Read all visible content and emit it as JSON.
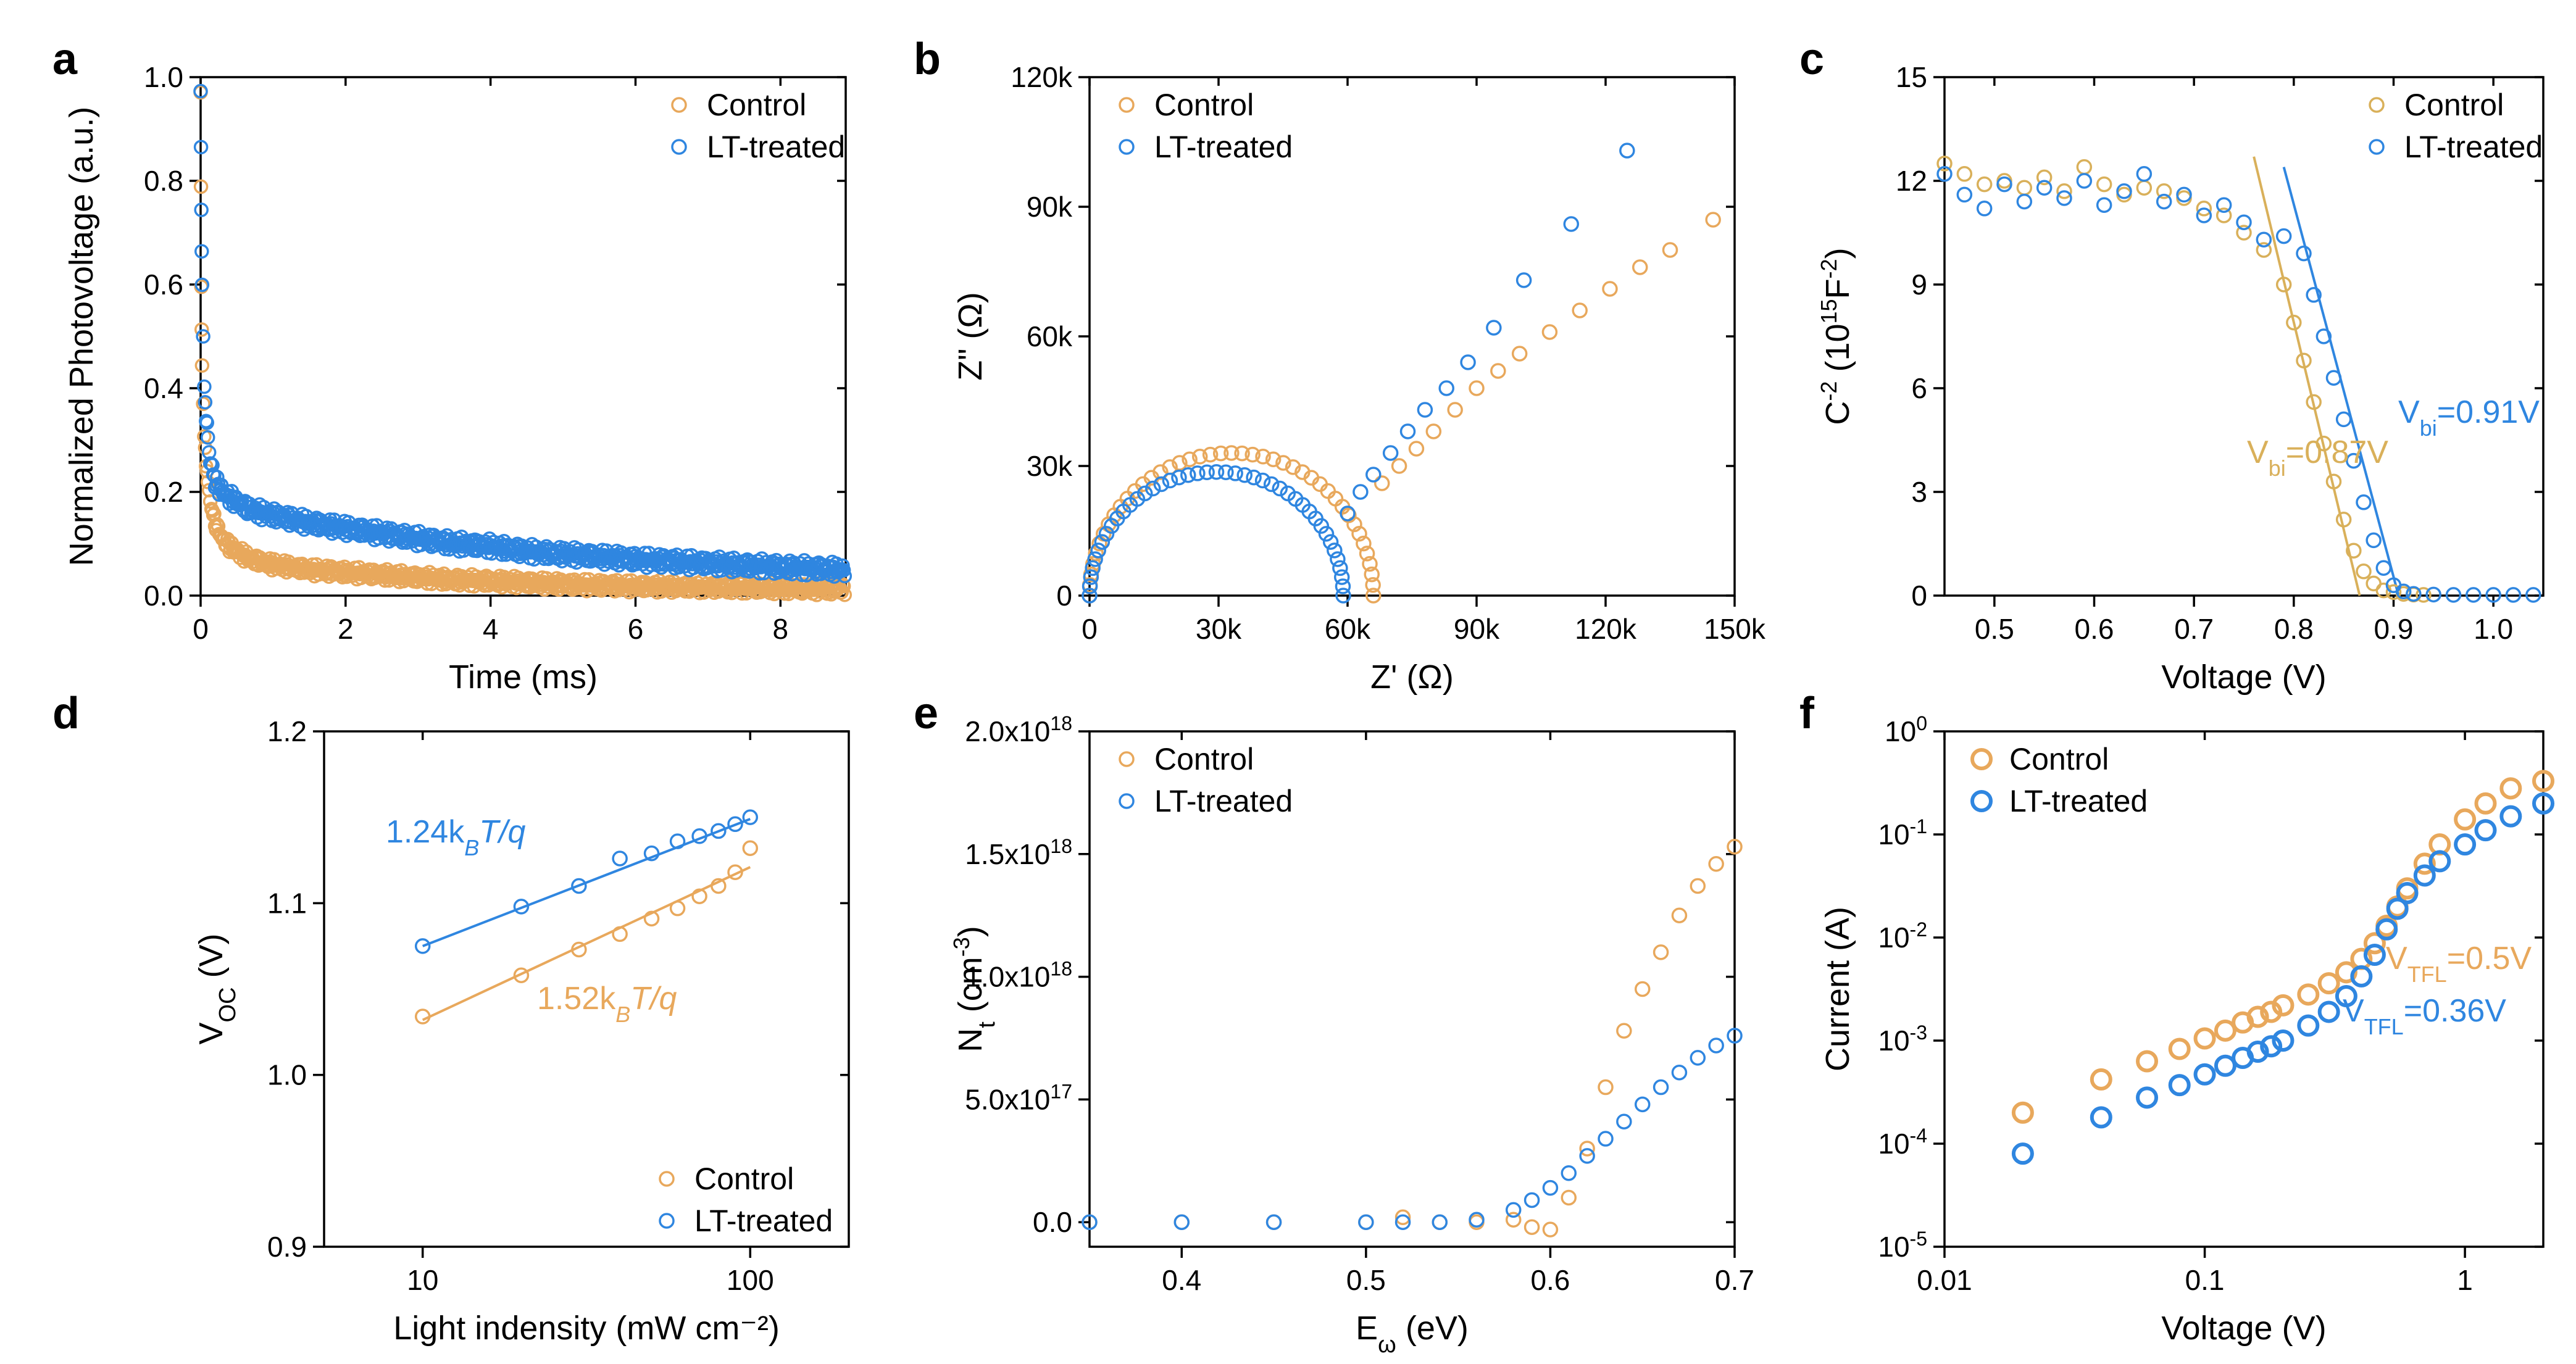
{
  "colors": {
    "control": "#E8A85C",
    "lt_treated": "#2F86E0",
    "control_c": "#D9B05A",
    "axis": "#000000"
  },
  "chart_data": [
    {
      "panel": "a",
      "type": "scatter",
      "xlabel": "Time (ms)",
      "ylabel": "Normalized Photovoltage (a.u.)",
      "xlim": [
        0,
        8.9
      ],
      "ylim": [
        0,
        1.0
      ],
      "xticks": [
        0,
        2,
        4,
        6,
        8
      ],
      "xtick_labels": [
        "0",
        "2",
        "4",
        "6",
        "8"
      ],
      "yticks": [
        0,
        0.2,
        0.4,
        0.6,
        0.8,
        1.0
      ],
      "ytick_labels": [
        "0.0",
        "0.2",
        "0.4",
        "0.6",
        "0.8",
        "1.0"
      ],
      "legend": [
        "Control",
        "LT-treated"
      ],
      "legend_position": "top-right",
      "series": [
        {
          "name": "Control",
          "x": [
            0,
            0.01,
            0.02,
            0.05,
            0.1,
            0.15,
            0.2,
            0.3,
            0.4,
            0.5,
            0.7,
            1.0,
            1.5,
            2.0,
            2.5,
            3.0,
            3.5,
            4.0,
            4.5,
            5.0,
            5.5,
            6.0,
            6.5,
            7.0,
            7.5,
            8.0,
            8.5,
            8.9
          ],
          "y": [
            0.97,
            0.6,
            0.45,
            0.3,
            0.22,
            0.17,
            0.14,
            0.11,
            0.095,
            0.085,
            0.07,
            0.06,
            0.05,
            0.045,
            0.04,
            0.035,
            0.03,
            0.028,
            0.025,
            0.022,
            0.02,
            0.018,
            0.017,
            0.016,
            0.015,
            0.014,
            0.013,
            0.012
          ]
        },
        {
          "name": "LT-treated",
          "x": [
            0,
            0.01,
            0.02,
            0.05,
            0.1,
            0.15,
            0.2,
            0.3,
            0.4,
            0.5,
            0.7,
            1.0,
            1.5,
            2.0,
            2.5,
            3.0,
            3.5,
            4.0,
            4.5,
            5.0,
            5.5,
            6.0,
            6.5,
            7.0,
            7.5,
            8.0,
            8.5,
            8.9
          ],
          "y": [
            0.98,
            0.75,
            0.6,
            0.4,
            0.3,
            0.25,
            0.22,
            0.2,
            0.19,
            0.18,
            0.165,
            0.155,
            0.14,
            0.13,
            0.12,
            0.11,
            0.1,
            0.095,
            0.085,
            0.08,
            0.075,
            0.07,
            0.066,
            0.062,
            0.058,
            0.055,
            0.052,
            0.05
          ]
        }
      ]
    },
    {
      "panel": "b",
      "type": "scatter",
      "xlabel": "Z' (Ω)",
      "ylabel": "Z\" (Ω)",
      "xlim": [
        0,
        150000
      ],
      "ylim": [
        0,
        120000
      ],
      "xticks": [
        0,
        30000,
        60000,
        90000,
        120000,
        150000
      ],
      "xtick_labels": [
        "0",
        "30k",
        "60k",
        "90k",
        "120k",
        "150k"
      ],
      "yticks": [
        0,
        30000,
        60000,
        90000,
        120000
      ],
      "ytick_labels": [
        "0",
        "30k",
        "60k",
        "90k",
        "120k"
      ],
      "legend": [
        "Control",
        "LT-treated"
      ],
      "legend_position": "top-left",
      "arc": [
        {
          "name": "Control",
          "center": 33000,
          "radius": 33000,
          "end": 67000
        },
        {
          "name": "LT-treated",
          "center": 29500,
          "radius": 29500,
          "end": 59000
        }
      ],
      "series": [
        {
          "name": "Control",
          "x": [
            68000,
            72000,
            76000,
            80000,
            85000,
            90000,
            95000,
            100000,
            107000,
            114000,
            121000,
            128000,
            135000,
            145000
          ],
          "y": [
            26000,
            30000,
            34000,
            38000,
            43000,
            48000,
            52000,
            56000,
            61000,
            66000,
            71000,
            76000,
            80000,
            87000
          ]
        },
        {
          "name": "LT-treated",
          "x": [
            60000,
            63000,
            66000,
            70000,
            74000,
            78000,
            83000,
            88000,
            94000,
            101000,
            112000,
            125000
          ],
          "y": [
            19000,
            24000,
            28000,
            33000,
            38000,
            43000,
            48000,
            54000,
            62000,
            73000,
            86000,
            103000
          ]
        }
      ]
    },
    {
      "panel": "c",
      "type": "scatter",
      "xlabel": "Voltage (V)",
      "ylabel": "C⁻² (10¹⁵F⁻²)",
      "xlim": [
        0.45,
        1.05
      ],
      "ylim": [
        0,
        15
      ],
      "xticks": [
        0.5,
        0.6,
        0.7,
        0.8,
        0.9,
        1.0
      ],
      "xtick_labels": [
        "0.5",
        "0.6",
        "0.7",
        "0.8",
        "0.9",
        "1.0"
      ],
      "yticks": [
        0,
        3,
        6,
        9,
        12,
        15
      ],
      "ytick_labels": [
        "0",
        "3",
        "6",
        "9",
        "12",
        "15"
      ],
      "legend": [
        "Control",
        "LT-treated"
      ],
      "legend_position": "top-right",
      "fit_lines": [
        {
          "name": "Control",
          "x": [
            0.76,
            0.866
          ],
          "y": [
            12.7,
            0
          ]
        },
        {
          "name": "LT-treated",
          "x": [
            0.79,
            0.905
          ],
          "y": [
            12.4,
            0
          ]
        }
      ],
      "annotations": [
        {
          "main": "V",
          "sub": "bi",
          "tail": "=0.87V",
          "series": "Control"
        },
        {
          "main": "V",
          "sub": "bi",
          "tail": "=0.91V",
          "series": "LT-treated"
        }
      ],
      "series": [
        {
          "name": "Control",
          "x": [
            0.45,
            0.47,
            0.49,
            0.51,
            0.53,
            0.55,
            0.57,
            0.59,
            0.61,
            0.63,
            0.65,
            0.67,
            0.69,
            0.71,
            0.73,
            0.75,
            0.77,
            0.79,
            0.8,
            0.81,
            0.82,
            0.83,
            0.84,
            0.85,
            0.86,
            0.87,
            0.88,
            0.89,
            0.9,
            0.91,
            0.92,
            0.93
          ],
          "y": [
            12.5,
            12.2,
            11.9,
            12.0,
            11.8,
            12.1,
            11.7,
            12.4,
            11.9,
            11.6,
            11.8,
            11.7,
            11.5,
            11.2,
            11.0,
            10.5,
            10.0,
            9.0,
            7.9,
            6.8,
            5.6,
            4.4,
            3.3,
            2.2,
            1.3,
            0.7,
            0.35,
            0.15,
            0.1,
            0.05,
            0.03,
            0.02
          ]
        },
        {
          "name": "LT-treated",
          "x": [
            0.45,
            0.47,
            0.49,
            0.51,
            0.53,
            0.55,
            0.57,
            0.59,
            0.61,
            0.63,
            0.65,
            0.67,
            0.69,
            0.71,
            0.73,
            0.75,
            0.77,
            0.79,
            0.81,
            0.82,
            0.83,
            0.84,
            0.85,
            0.86,
            0.87,
            0.88,
            0.89,
            0.9,
            0.91,
            0.92,
            0.94,
            0.96,
            0.98,
            1.0,
            1.02,
            1.04
          ],
          "y": [
            12.2,
            11.6,
            11.2,
            11.9,
            11.4,
            11.8,
            11.5,
            12.0,
            11.3,
            11.7,
            12.2,
            11.4,
            11.6,
            11.0,
            11.3,
            10.8,
            10.3,
            10.4,
            9.9,
            8.7,
            7.5,
            6.3,
            5.1,
            3.9,
            2.7,
            1.6,
            0.8,
            0.3,
            0.12,
            0.05,
            0.03,
            0.02,
            0.02,
            0.02,
            0.02,
            0.02
          ]
        }
      ]
    },
    {
      "panel": "d",
      "type": "scatter",
      "xlabel": "Light indensity (mW cm⁻²)",
      "ylabel": "V_OC (V)",
      "xscale": "log",
      "xlim": [
        5,
        200
      ],
      "ylim": [
        0.9,
        1.2
      ],
      "xticks": [
        10,
        100
      ],
      "xtick_labels": [
        "10",
        "100"
      ],
      "yticks": [
        0.9,
        1.0,
        1.1,
        1.2
      ],
      "ytick_labels": [
        "0.9",
        "1.0",
        "1.1",
        "1.2"
      ],
      "legend": [
        "Control",
        "LT-treated"
      ],
      "legend_position": "bottom-right",
      "annotations": [
        {
          "text": "1.24k",
          "sub": "B",
          "tail": "T/q",
          "series": "LT-treated"
        },
        {
          "text": "1.52k",
          "sub": "B",
          "tail": "T/q",
          "series": "Control"
        }
      ],
      "series": [
        {
          "name": "Control",
          "x": [
            10,
            20,
            30,
            40,
            50,
            60,
            70,
            80,
            90,
            100
          ],
          "y": [
            1.034,
            1.058,
            1.073,
            1.082,
            1.091,
            1.097,
            1.104,
            1.11,
            1.118,
            1.132
          ],
          "fit": [
            1.032,
            1.121
          ]
        },
        {
          "name": "LT-treated",
          "x": [
            10,
            20,
            30,
            40,
            50,
            60,
            70,
            80,
            90,
            100
          ],
          "y": [
            1.075,
            1.098,
            1.11,
            1.126,
            1.129,
            1.136,
            1.139,
            1.142,
            1.146,
            1.15
          ],
          "fit": [
            1.075,
            1.149
          ]
        }
      ]
    },
    {
      "panel": "e",
      "type": "scatter",
      "xlabel": "Eω (eV)",
      "ylabel": "Nt (cm⁻³)",
      "xlim": [
        0.35,
        0.7
      ],
      "ylim": [
        -1e+17,
        2e+18
      ],
      "xticks": [
        0.4,
        0.5,
        0.6,
        0.7
      ],
      "xtick_labels": [
        "0.4",
        "0.5",
        "0.6",
        "0.7"
      ],
      "yticks": [
        0,
        5e+17,
        1e+18,
        1.5e+18,
        2e+18
      ],
      "ytick_mant": [
        "0.0",
        "5.0x10",
        "1.0x10",
        "1.5x10",
        "2.0x10"
      ],
      "ytick_exp": [
        "",
        "17",
        "18",
        "18",
        "18"
      ],
      "legend": [
        "Control",
        "LT-treated"
      ],
      "legend_position": "top-left",
      "series": [
        {
          "name": "Control",
          "x": [
            0.35,
            0.4,
            0.45,
            0.5,
            0.52,
            0.54,
            0.56,
            0.58,
            0.59,
            0.6,
            0.61,
            0.62,
            0.63,
            0.64,
            0.65,
            0.66,
            0.67,
            0.68,
            0.69,
            0.7
          ],
          "y": [
            0,
            0,
            0,
            0,
            2e+16,
            0,
            0,
            1e+16,
            -2e+16,
            -3e+16,
            1e+17,
            3e+17,
            5.5e+17,
            7.8e+17,
            9.5e+17,
            1.1e+18,
            1.25e+18,
            1.37e+18,
            1.46e+18,
            1.53e+18
          ]
        },
        {
          "name": "LT-treated",
          "x": [
            0.35,
            0.4,
            0.45,
            0.5,
            0.52,
            0.54,
            0.56,
            0.58,
            0.59,
            0.6,
            0.61,
            0.62,
            0.63,
            0.64,
            0.65,
            0.66,
            0.67,
            0.68,
            0.69,
            0.7
          ],
          "y": [
            0,
            0,
            0,
            0,
            0,
            0,
            1e+16,
            5e+16,
            9e+16,
            1.4e+17,
            2e+17,
            2.7e+17,
            3.4e+17,
            4.1e+17,
            4.8e+17,
            5.5e+17,
            6.1e+17,
            6.7e+17,
            7.2e+17,
            7.6e+17
          ]
        }
      ]
    },
    {
      "panel": "f",
      "type": "scatter",
      "xlabel": "Voltage (V)",
      "ylabel": "Current (A)",
      "xscale": "log",
      "yscale": "log",
      "xlim": [
        0.01,
        2
      ],
      "ylim": [
        1e-05,
        1
      ],
      "xticks": [
        0.01,
        0.1,
        1
      ],
      "xtick_labels": [
        "0.01",
        "0.1",
        "1"
      ],
      "yticks": [
        1e-05,
        0.0001,
        0.001,
        0.01,
        0.1,
        1
      ],
      "ytick_mant": [
        "10",
        "10",
        "10",
        "10",
        "10",
        "10"
      ],
      "ytick_exp": [
        "-5",
        "-4",
        "-3",
        "-2",
        "-1",
        "0"
      ],
      "legend": [
        "Control",
        "LT-treated"
      ],
      "legend_position": "top-left",
      "annotations": [
        {
          "main": "V",
          "sub": "TFL",
          "tail": "=0.5V",
          "series": "Control"
        },
        {
          "main": "V",
          "sub": "TFL",
          "tail": "=0.36V",
          "series": "LT-treated"
        }
      ],
      "series": [
        {
          "name": "Control",
          "x": [
            0.02,
            0.04,
            0.06,
            0.08,
            0.1,
            0.12,
            0.14,
            0.16,
            0.18,
            0.2,
            0.25,
            0.3,
            0.35,
            0.4,
            0.45,
            0.5,
            0.55,
            0.6,
            0.7,
            0.8,
            1.0,
            1.2,
            1.5,
            2.0
          ],
          "y": [
            0.0002,
            0.00042,
            0.00063,
            0.00083,
            0.00105,
            0.00125,
            0.0015,
            0.0017,
            0.0019,
            0.0022,
            0.0028,
            0.0036,
            0.0046,
            0.0062,
            0.0088,
            0.013,
            0.02,
            0.03,
            0.052,
            0.08,
            0.14,
            0.2,
            0.28,
            0.33
          ]
        },
        {
          "name": "LT-treated",
          "x": [
            0.02,
            0.04,
            0.06,
            0.08,
            0.1,
            0.12,
            0.14,
            0.16,
            0.18,
            0.2,
            0.25,
            0.3,
            0.35,
            0.4,
            0.45,
            0.5,
            0.55,
            0.6,
            0.7,
            0.8,
            1.0,
            1.2,
            1.5,
            2.0
          ],
          "y": [
            8e-05,
            0.00018,
            0.00028,
            0.00037,
            0.00047,
            0.00057,
            0.00068,
            0.00078,
            0.00088,
            0.001,
            0.0014,
            0.0019,
            0.0027,
            0.0042,
            0.0068,
            0.012,
            0.019,
            0.027,
            0.04,
            0.055,
            0.08,
            0.11,
            0.15,
            0.2
          ]
        }
      ]
    }
  ]
}
